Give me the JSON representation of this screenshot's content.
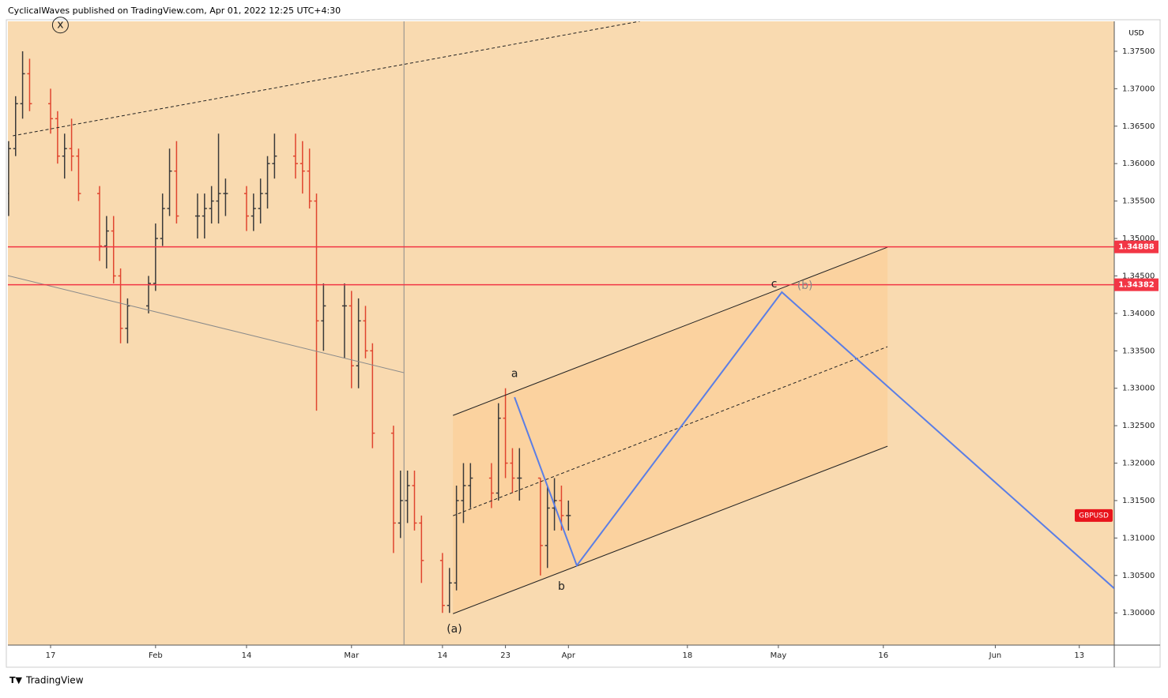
{
  "header": {
    "text": "CyclicalWaves published on TradingView.com, Apr 01, 2022 12:25 UTC+4:30"
  },
  "footer": {
    "text": "TradingView"
  },
  "chart_data": {
    "type": "ohlc",
    "currency": "USD",
    "symbol": "GBPUSD",
    "up_color": "#3a3a3a",
    "down_color": "#e0452f",
    "x": [
      11,
      12,
      13,
      14,
      17,
      18,
      19,
      20,
      21,
      24,
      25,
      26,
      27,
      28,
      31,
      32,
      33,
      34,
      35,
      38,
      39,
      40,
      41,
      42,
      45,
      46,
      47,
      48,
      49,
      52,
      53,
      54,
      55,
      56,
      59,
      60,
      61,
      62,
      63,
      66,
      67,
      68,
      69,
      70,
      73,
      74,
      75,
      76,
      77,
      80,
      81,
      82,
      83,
      84,
      87,
      88,
      89,
      90,
      91
    ],
    "open": [
      1.356,
      1.362,
      1.368,
      1.372,
      1.368,
      1.366,
      1.361,
      1.362,
      1.361,
      1.356,
      1.349,
      1.351,
      1.345,
      1.338,
      1.341,
      1.344,
      1.35,
      1.354,
      1.359,
      1.353,
      1.353,
      1.354,
      1.355,
      1.356,
      1.356,
      1.353,
      1.354,
      1.356,
      1.36,
      1.361,
      1.36,
      1.359,
      1.355,
      1.339,
      1.341,
      1.341,
      1.333,
      1.339,
      1.335,
      1.324,
      1.312,
      1.315,
      1.317,
      1.312,
      1.307,
      1.301,
      1.304,
      1.315,
      1.317,
      1.318,
      1.316,
      1.326,
      1.32,
      1.318,
      1.318,
      1.309,
      1.314,
      1.315,
      1.313
    ],
    "high": [
      1.363,
      1.369,
      1.375,
      1.374,
      1.37,
      1.367,
      1.364,
      1.366,
      1.362,
      1.357,
      1.353,
      1.353,
      1.346,
      1.342,
      1.345,
      1.352,
      1.356,
      1.362,
      1.363,
      1.356,
      1.356,
      1.357,
      1.364,
      1.358,
      1.357,
      1.356,
      1.358,
      1.361,
      1.364,
      1.364,
      1.363,
      1.362,
      1.356,
      1.344,
      1.344,
      1.343,
      1.342,
      1.341,
      1.336,
      1.325,
      1.319,
      1.319,
      1.319,
      1.313,
      1.308,
      1.306,
      1.317,
      1.32,
      1.32,
      1.32,
      1.328,
      1.33,
      1.322,
      1.322,
      1.318,
      1.317,
      1.318,
      1.317,
      1.315
    ],
    "low": [
      1.353,
      1.361,
      1.366,
      1.367,
      1.364,
      1.36,
      1.358,
      1.359,
      1.355,
      1.347,
      1.346,
      1.344,
      1.336,
      1.336,
      1.34,
      1.343,
      1.349,
      1.353,
      1.352,
      1.35,
      1.35,
      1.352,
      1.352,
      1.353,
      1.351,
      1.351,
      1.352,
      1.354,
      1.358,
      1.358,
      1.356,
      1.354,
      1.327,
      1.335,
      1.334,
      1.33,
      1.33,
      1.334,
      1.322,
      1.308,
      1.31,
      1.312,
      1.311,
      1.304,
      1.3,
      1.3,
      1.303,
      1.312,
      1.314,
      1.314,
      1.315,
      1.318,
      1.316,
      1.315,
      1.305,
      1.306,
      1.311,
      1.311,
      1.311
    ],
    "close": [
      1.362,
      1.368,
      1.372,
      1.368,
      1.366,
      1.361,
      1.362,
      1.361,
      1.356,
      1.349,
      1.351,
      1.345,
      1.338,
      1.341,
      1.344,
      1.35,
      1.354,
      1.359,
      1.353,
      1.353,
      1.354,
      1.355,
      1.356,
      1.356,
      1.353,
      1.354,
      1.356,
      1.36,
      1.361,
      1.36,
      1.359,
      1.355,
      1.339,
      1.341,
      1.341,
      1.333,
      1.339,
      1.335,
      1.324,
      1.312,
      1.315,
      1.317,
      1.312,
      1.307,
      1.301,
      1.304,
      1.315,
      1.317,
      1.318,
      1.316,
      1.326,
      1.32,
      1.318,
      1.318,
      1.309,
      1.314,
      1.315,
      1.313,
      1.313
    ],
    "xlim": [
      10.9,
      169
    ],
    "ylim": [
      1.2957,
      1.379
    ],
    "xticks": [
      {
        "value": 17,
        "label": "17"
      },
      {
        "value": 32,
        "label": "Feb"
      },
      {
        "value": 45,
        "label": "14"
      },
      {
        "value": 60,
        "label": "Mar"
      },
      {
        "value": 73,
        "label": "14"
      },
      {
        "value": 82,
        "label": "23"
      },
      {
        "value": 91,
        "label": "Apr"
      },
      {
        "value": 108,
        "label": "18"
      },
      {
        "value": 121,
        "label": "May"
      },
      {
        "value": 136,
        "label": "16"
      },
      {
        "value": 152,
        "label": "Jun"
      },
      {
        "value": 164,
        "label": "13"
      }
    ],
    "yticks": [
      {
        "value": 1.3,
        "label": "1.30000"
      },
      {
        "value": 1.305,
        "label": "1.30500"
      },
      {
        "value": 1.31,
        "label": "1.31000"
      },
      {
        "value": 1.315,
        "label": "1.31500"
      },
      {
        "value": 1.32,
        "label": "1.32000"
      },
      {
        "value": 1.325,
        "label": "1.32500"
      },
      {
        "value": 1.33,
        "label": "1.33000"
      },
      {
        "value": 1.335,
        "label": "1.33500"
      },
      {
        "value": 1.34,
        "label": "1.34000"
      },
      {
        "value": 1.345,
        "label": "1.34500"
      },
      {
        "value": 1.35,
        "label": "1.35000"
      },
      {
        "value": 1.355,
        "label": "1.35500"
      },
      {
        "value": 1.36,
        "label": "1.36000"
      },
      {
        "value": 1.365,
        "label": "1.36500"
      },
      {
        "value": 1.37,
        "label": "1.37000"
      },
      {
        "value": 1.375,
        "label": "1.37500"
      }
    ],
    "horizontal_lines": [
      {
        "value": 1.34888,
        "label": "1.34888",
        "color": "#f23645"
      },
      {
        "value": 1.34382,
        "label": "1.34382",
        "color": "#f23645"
      }
    ],
    "vertical_lines": [
      67.5
    ],
    "channel": {
      "x": [
        74.5,
        136.6
      ],
      "upper": [
        1.32637,
        1.34884
      ],
      "lower": [
        1.29989,
        1.32226
      ],
      "fill": "rgba(255,196,130,0.35)"
    },
    "drawings": [
      {
        "x": [
          74.5,
          136.6
        ],
        "y": [
          1.32637,
          1.34884
        ],
        "color": "#222",
        "dash": false,
        "width": 1
      },
      {
        "x": [
          74.5,
          136.6
        ],
        "y": [
          1.29989,
          1.32226
        ],
        "color": "#222",
        "dash": false,
        "width": 1
      },
      {
        "x": [
          74.5,
          136.6
        ],
        "y": [
          1.31297,
          1.33555
        ],
        "color": "#222",
        "dash": true,
        "width": 1
      },
      {
        "x": [
          11.6,
          101.2
        ],
        "y": [
          1.36371,
          1.37901
        ],
        "color": "#222",
        "dash": true,
        "width": 1
      },
      {
        "x": [
          10.9,
          67.5
        ],
        "y": [
          1.34504,
          1.33207
        ],
        "color": "#8a8a8a",
        "dash": false,
        "width": 1
      },
      {
        "x": [
          83.3,
          92.2,
          121.5,
          169
        ],
        "y": [
          1.3288,
          1.30633,
          1.34283,
          1.30327
        ],
        "color": "#5b7ee5",
        "dash": false,
        "width": 2
      }
    ],
    "annotations": [
      {
        "text": "x",
        "x": 18.4,
        "y": 1.3785,
        "circle": true
      },
      {
        "text": "a",
        "x": 83.3,
        "y": 1.3319
      },
      {
        "text": "b",
        "x": 90,
        "y": 1.3035
      },
      {
        "text": "c",
        "x": 120.4,
        "y": 1.3439
      },
      {
        "text": "(b)",
        "x": 124.8,
        "y": 1.3437,
        "color": "#888"
      },
      {
        "text": "(a)",
        "x": 74.7,
        "y": 1.2978
      }
    ]
  }
}
